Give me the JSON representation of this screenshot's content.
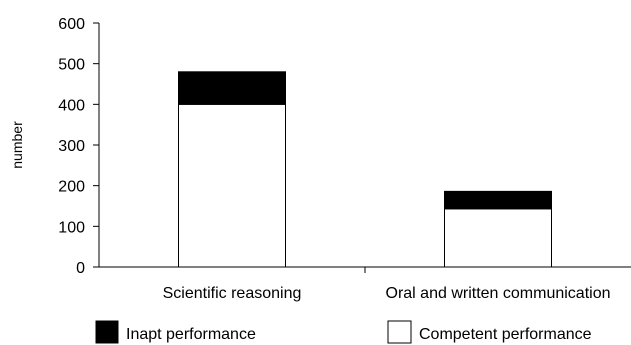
{
  "chart_data": {
    "type": "bar",
    "stacked": true,
    "categories": [
      "Scientific reasoning",
      "Oral and written communication"
    ],
    "series": [
      {
        "name": "Competent performance",
        "values": [
          400,
          143
        ],
        "color": "#ffffff"
      },
      {
        "name": "Inapt performance",
        "values": [
          80,
          43
        ],
        "color": "#000000"
      }
    ],
    "ylabel": "number",
    "ylim": [
      0,
      600
    ],
    "yticks": [
      0,
      100,
      200,
      300,
      400,
      500,
      600
    ],
    "grid": false,
    "legend_position": "bottom"
  },
  "legend": {
    "items": [
      {
        "label": "Inapt performance",
        "color": "#000000"
      },
      {
        "label": "Competent performance",
        "color": "#ffffff"
      }
    ]
  }
}
